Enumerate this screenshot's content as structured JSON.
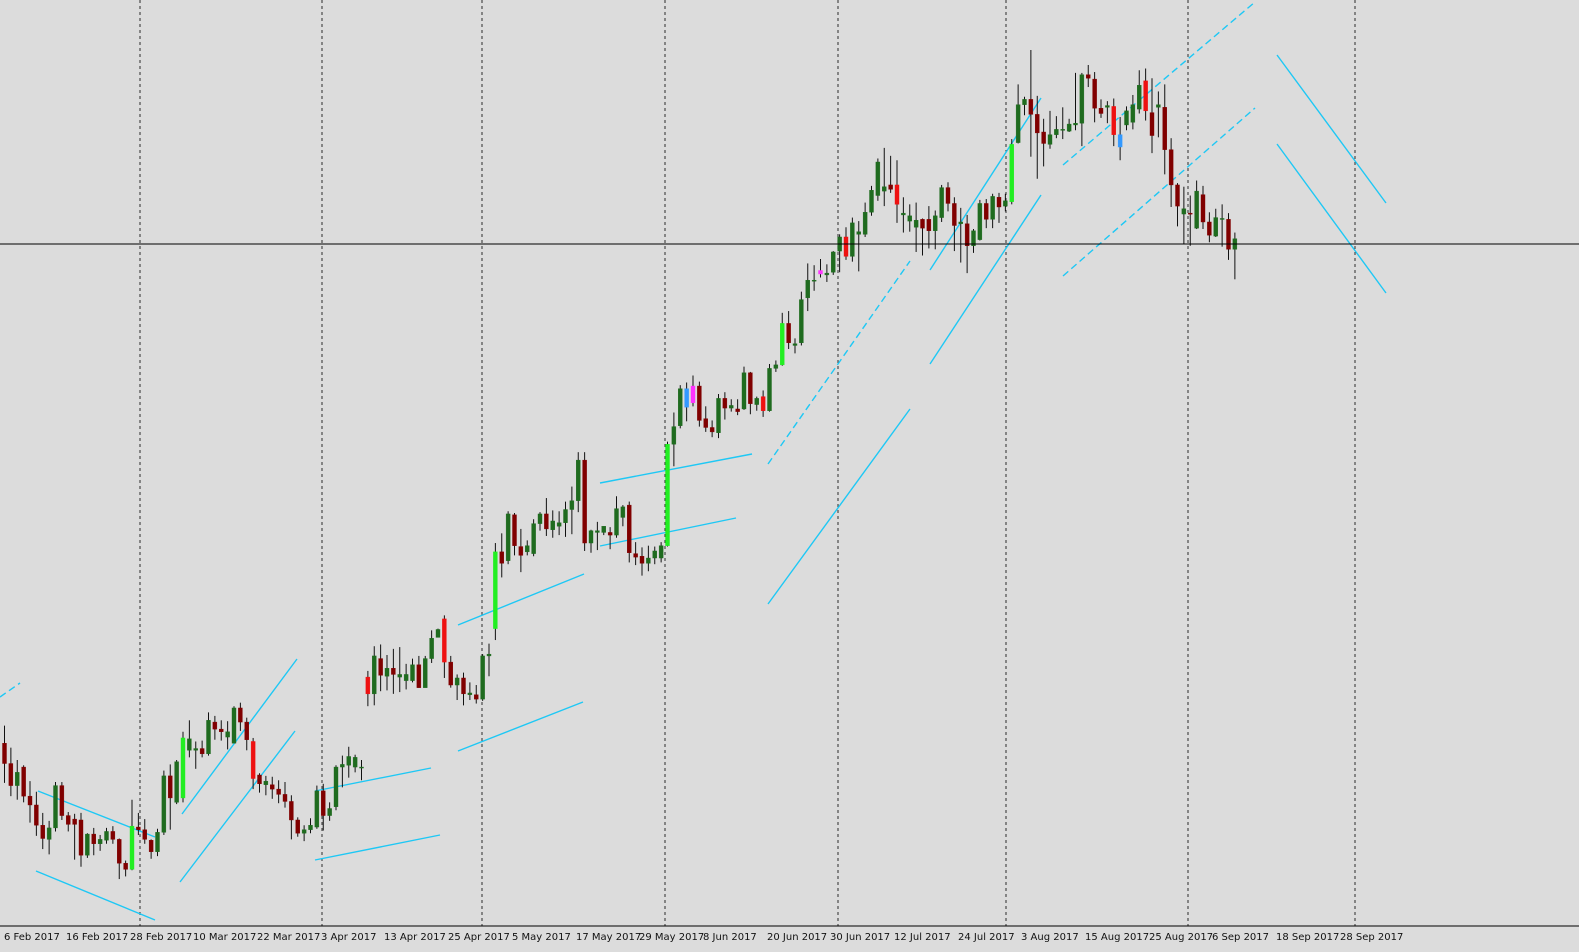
{
  "chart_data": {
    "type": "candlestick",
    "title": "",
    "xlabel": "",
    "ylabel": "",
    "date_labels": [
      "6 Feb 2017",
      "16 Feb 2017",
      "28 Feb 2017",
      "10 Mar 2017",
      "22 Mar 2017",
      "3 Apr 2017",
      "13 Apr 2017",
      "25 Apr 2017",
      "5 May 2017",
      "17 May 2017",
      "29 May 2017",
      "8 Jun 2017",
      "20 Jun 2017",
      "30 Jun 2017",
      "12 Jul 2017",
      "24 Jul 2017",
      "3 Aug 2017",
      "15 Aug 2017",
      "25 Aug 2017",
      "6 Sep 2017",
      "18 Sep 2017",
      "28 Sep 2017"
    ],
    "y_range": [
      0,
      100
    ],
    "grid": "vertical-dashed",
    "current_price_line": 74.6,
    "colors": {
      "background": "#dcdcdc",
      "bull": "#1f6b1f",
      "bear": "#800000",
      "bull_highlight": "#22ee22",
      "bear_highlight": "#ee1111",
      "blue_highlight": "#3399ff",
      "magenta_highlight": "#ff33ff",
      "channel": "#1ec8f5",
      "grid": "#000000",
      "price_line": "#000000"
    },
    "candles": [
      [
        18.0,
        20.0,
        13.5,
        15.7,
        "bear"
      ],
      [
        15.7,
        17.5,
        12.0,
        13.2,
        "bear"
      ],
      [
        13.2,
        16.1,
        11.6,
        14.7,
        "bull"
      ],
      [
        15.3,
        15.5,
        11.3,
        12.0,
        "bear"
      ],
      [
        12.0,
        13.7,
        9.0,
        11.0,
        "bear"
      ],
      [
        11.0,
        12.5,
        7.5,
        8.7,
        "bear"
      ],
      [
        8.7,
        10.1,
        6.0,
        7.2,
        "bear"
      ],
      [
        7.1,
        9.2,
        5.4,
        8.4,
        "bull"
      ],
      [
        8.4,
        13.6,
        8.0,
        13.2,
        "bull"
      ],
      [
        13.2,
        13.6,
        9.3,
        9.8,
        "bear"
      ],
      [
        9.8,
        10.2,
        8.0,
        8.8,
        "bear"
      ],
      [
        8.8,
        10.0,
        4.8,
        9.4,
        "bear"
      ],
      [
        9.3,
        10.1,
        4.0,
        5.3,
        "bear"
      ],
      [
        5.3,
        7.8,
        5.0,
        7.7,
        "bull"
      ],
      [
        7.7,
        8.4,
        5.3,
        6.6,
        "bear"
      ],
      [
        6.6,
        7.6,
        5.8,
        7.1,
        "bull"
      ],
      [
        7.0,
        8.4,
        6.6,
        8.0,
        "bull"
      ],
      [
        8.0,
        8.6,
        6.6,
        7.1,
        "bear"
      ],
      [
        7.1,
        7.2,
        2.6,
        4.4,
        "bear"
      ],
      [
        4.4,
        4.7,
        2.9,
        3.7,
        "bear"
      ],
      [
        3.7,
        11.6,
        3.6,
        8.6,
        "bull_highlight"
      ],
      [
        8.5,
        10.1,
        7.6,
        8.2,
        "bear"
      ],
      [
        8.2,
        9.4,
        6.6,
        7.1,
        "bear"
      ],
      [
        7.0,
        7.1,
        4.9,
        5.7,
        "bear"
      ],
      [
        5.7,
        8.3,
        5.2,
        7.9,
        "bull"
      ],
      [
        7.9,
        14.9,
        7.6,
        14.3,
        "bull"
      ],
      [
        14.3,
        15.6,
        8.2,
        11.8,
        "bear"
      ],
      [
        11.3,
        16.1,
        11.1,
        15.9,
        "bull"
      ],
      [
        11.8,
        19.3,
        11.3,
        18.6,
        "bull_highlight"
      ],
      [
        18.5,
        20.6,
        16.4,
        17.2,
        "bull"
      ],
      [
        17.2,
        18.2,
        15.1,
        17.4,
        "bull"
      ],
      [
        17.4,
        18.3,
        16.4,
        16.8,
        "bear"
      ],
      [
        16.8,
        21.5,
        16.6,
        20.6,
        "bull"
      ],
      [
        20.4,
        21.1,
        18.4,
        19.6,
        "bear"
      ],
      [
        19.6,
        20.6,
        18.3,
        19.3,
        "bear"
      ],
      [
        19.3,
        20.5,
        17.3,
        18.7,
        "bull"
      ],
      [
        18.0,
        22.2,
        18.3,
        22.0,
        "bull"
      ],
      [
        22.0,
        22.6,
        19.4,
        20.4,
        "bear"
      ],
      [
        20.4,
        20.9,
        17.2,
        18.4,
        "bear"
      ],
      [
        18.2,
        18.6,
        12.8,
        14.0,
        "bear_highlight"
      ],
      [
        14.4,
        14.6,
        12.4,
        13.4,
        "bear"
      ],
      [
        13.7,
        14.3,
        12.1,
        13.3,
        "bull"
      ],
      [
        13.3,
        14.2,
        11.7,
        12.8,
        "bear"
      ],
      [
        12.8,
        13.8,
        11.2,
        12.2,
        "bear"
      ],
      [
        12.2,
        13.6,
        10.7,
        11.4,
        "bear"
      ],
      [
        11.4,
        12.1,
        7.1,
        9.3,
        "bear"
      ],
      [
        9.3,
        9.6,
        7.4,
        7.8,
        "bear"
      ],
      [
        7.8,
        8.7,
        6.9,
        8.2,
        "bull"
      ],
      [
        8.2,
        9.5,
        7.8,
        8.7,
        "bull"
      ],
      [
        8.5,
        13.2,
        8.3,
        12.6,
        "bull"
      ],
      [
        12.6,
        13.4,
        8.1,
        9.8,
        "bear"
      ],
      [
        9.8,
        11.3,
        9.2,
        10.6,
        "bull"
      ],
      [
        10.8,
        15.5,
        10.4,
        15.3,
        "bull"
      ],
      [
        15.3,
        16.6,
        13.0,
        15.6,
        "bull"
      ],
      [
        15.5,
        17.6,
        14.1,
        16.5,
        "bull"
      ],
      [
        16.4,
        16.7,
        14.7,
        15.3,
        "bull"
      ],
      [
        15.3,
        16.1,
        13.8,
        15.2,
        "bull"
      ],
      [
        25.5,
        26.2,
        22.2,
        23.6,
        "bear_highlight"
      ],
      [
        23.6,
        29.0,
        22.3,
        27.9,
        "bull"
      ],
      [
        27.6,
        29.2,
        23.9,
        25.7,
        "bear"
      ],
      [
        25.6,
        28.0,
        24.0,
        26.5,
        "bull"
      ],
      [
        26.5,
        28.7,
        23.6,
        25.8,
        "bear"
      ],
      [
        25.5,
        28.9,
        23.8,
        25.8,
        "bull"
      ],
      [
        25.8,
        27.0,
        24.1,
        25.1,
        "bull"
      ],
      [
        25.1,
        27.6,
        24.9,
        26.9,
        "bull"
      ],
      [
        26.9,
        27.9,
        24.3,
        24.3,
        "bear"
      ],
      [
        24.3,
        27.9,
        24.6,
        27.6,
        "bull"
      ],
      [
        27.6,
        30.8,
        27.1,
        29.9,
        "bull"
      ],
      [
        30.0,
        31.0,
        30.0,
        30.9,
        "bull"
      ],
      [
        32.1,
        32.5,
        25.4,
        27.2,
        "bear_highlight"
      ],
      [
        27.2,
        27.9,
        24.3,
        24.6,
        "bear"
      ],
      [
        24.6,
        25.8,
        22.9,
        25.4,
        "bull"
      ],
      [
        25.4,
        26.0,
        22.3,
        23.6,
        "bear"
      ],
      [
        23.7,
        24.9,
        22.9,
        23.5,
        "bull"
      ],
      [
        23.5,
        24.6,
        22.5,
        23.0,
        "bear"
      ],
      [
        23.0,
        28.1,
        22.8,
        27.9,
        "bull"
      ],
      [
        27.9,
        29.3,
        25.6,
        28.1,
        "bull"
      ],
      [
        31.0,
        40.7,
        29.7,
        39.7,
        "bull_highlight"
      ],
      [
        39.7,
        41.8,
        36.8,
        38.4,
        "bear"
      ],
      [
        38.7,
        44.3,
        38.3,
        44.0,
        "bull"
      ],
      [
        43.9,
        44.1,
        39.3,
        40.4,
        "bear"
      ],
      [
        40.3,
        42.3,
        37.4,
        39.3,
        "bear"
      ],
      [
        40.4,
        41.0,
        39.3,
        39.7,
        "bull"
      ],
      [
        39.5,
        43.4,
        39.2,
        42.9,
        "bull"
      ],
      [
        42.9,
        44.2,
        42.1,
        44.0,
        "bull"
      ],
      [
        44.0,
        45.8,
        41.5,
        42.3,
        "bear"
      ],
      [
        42.2,
        44.4,
        41.3,
        43.2,
        "bull"
      ],
      [
        42.6,
        44.3,
        41.6,
        43.0,
        "bull"
      ],
      [
        43.0,
        45.4,
        41.4,
        44.5,
        "bull"
      ],
      [
        44.5,
        47.1,
        41.7,
        45.5,
        "bull"
      ],
      [
        45.5,
        51.0,
        44.2,
        50.1,
        "bull"
      ],
      [
        50.1,
        51.0,
        39.8,
        40.7,
        "bear"
      ],
      [
        40.7,
        42.2,
        39.6,
        42.1,
        "bull"
      ],
      [
        42.1,
        43.1,
        39.9,
        41.9,
        "bull"
      ],
      [
        41.9,
        42.6,
        41.6,
        42.6,
        "bull"
      ],
      [
        41.9,
        42.5,
        40.0,
        41.6,
        "bear"
      ],
      [
        41.6,
        46.0,
        41.3,
        44.6,
        "bull"
      ],
      [
        43.6,
        45.0,
        42.6,
        44.8,
        "bull"
      ],
      [
        45.0,
        45.4,
        38.5,
        39.6,
        "bear"
      ],
      [
        39.5,
        40.8,
        38.2,
        39.1,
        "bear"
      ],
      [
        39.2,
        40.2,
        37.0,
        38.4,
        "bear"
      ],
      [
        38.4,
        40.4,
        37.5,
        39.0,
        "bull"
      ],
      [
        39.0,
        40.3,
        38.3,
        39.8,
        "bull"
      ],
      [
        39.0,
        40.8,
        38.5,
        40.4,
        "bull"
      ],
      [
        40.4,
        52.2,
        40.3,
        51.9,
        "bull_highlight"
      ],
      [
        51.9,
        55.5,
        49.4,
        53.9,
        "bull"
      ],
      [
        54.0,
        58.6,
        53.7,
        58.2,
        "bull"
      ],
      [
        58.2,
        58.9,
        54.5,
        56.1,
        "blue_highlight"
      ],
      [
        56.6,
        59.7,
        56.2,
        58.5,
        "magenta_highlight"
      ],
      [
        58.5,
        59.0,
        53.9,
        54.6,
        "bear"
      ],
      [
        54.8,
        56.2,
        53.3,
        53.8,
        "bear"
      ],
      [
        53.8,
        54.6,
        52.7,
        53.3,
        "bear"
      ],
      [
        53.2,
        57.6,
        52.6,
        57.1,
        "bull"
      ],
      [
        57.1,
        57.8,
        54.7,
        56.0,
        "bear"
      ],
      [
        56.0,
        57.0,
        55.6,
        56.3,
        "bull"
      ],
      [
        55.6,
        57.0,
        55.2,
        55.9,
        "bear"
      ],
      [
        55.9,
        60.7,
        55.8,
        60.0,
        "bull"
      ],
      [
        60.0,
        60.1,
        55.3,
        56.5,
        "bear"
      ],
      [
        56.4,
        57.3,
        55.7,
        57.1,
        "bull"
      ],
      [
        57.3,
        58.0,
        55.0,
        55.7,
        "bear_highlight"
      ],
      [
        55.7,
        61.0,
        55.6,
        60.5,
        "bull"
      ],
      [
        60.5,
        61.4,
        60.1,
        60.9,
        "bull"
      ],
      [
        60.9,
        66.8,
        60.8,
        65.6,
        "bull_highlight"
      ],
      [
        65.6,
        67.0,
        62.7,
        63.4,
        "bear"
      ],
      [
        63.3,
        63.9,
        62.2,
        63.1,
        "bull"
      ],
      [
        63.4,
        69.2,
        63.1,
        68.3,
        "bull"
      ],
      [
        68.5,
        72.4,
        67.0,
        70.5,
        "bull"
      ],
      [
        70.4,
        72.2,
        69.3,
        70.5,
        "bull"
      ],
      [
        71.6,
        72.9,
        70.8,
        71.2,
        "magenta_highlight"
      ],
      [
        71.1,
        72.3,
        70.3,
        71.3,
        "bull"
      ],
      [
        71.4,
        73.8,
        71.1,
        73.7,
        "bull"
      ],
      [
        73.8,
        75.7,
        71.4,
        75.4,
        "bull"
      ],
      [
        75.4,
        76.5,
        72.8,
        73.2,
        "bear_highlight"
      ],
      [
        73.2,
        77.6,
        72.6,
        77.0,
        "bull"
      ],
      [
        76.0,
        77.2,
        71.5,
        75.7,
        "bull"
      ],
      [
        75.7,
        79.3,
        75.4,
        78.2,
        "bull"
      ],
      [
        78.2,
        81.2,
        77.8,
        80.7,
        "bull"
      ],
      [
        80.1,
        84.3,
        79.5,
        83.9,
        "bull"
      ],
      [
        81.1,
        85.5,
        78.9,
        80.6,
        "bull"
      ],
      [
        80.8,
        84.6,
        80.4,
        81.3,
        "bear"
      ],
      [
        81.3,
        84.1,
        77.0,
        79.1,
        "bear_highlight"
      ],
      [
        78.1,
        79.9,
        75.9,
        77.9,
        "bull"
      ],
      [
        77.8,
        79.1,
        76.0,
        77.2,
        "bull"
      ],
      [
        77.3,
        79.3,
        73.7,
        76.5,
        "bull"
      ],
      [
        76.4,
        77.5,
        73.3,
        77.4,
        "bear"
      ],
      [
        77.4,
        78.9,
        74.1,
        76.1,
        "bear"
      ],
      [
        76.1,
        78.4,
        74.0,
        77.8,
        "bull"
      ],
      [
        77.6,
        81.3,
        77.1,
        81.0,
        "bull"
      ],
      [
        81.0,
        81.6,
        78.3,
        79.2,
        "bear"
      ],
      [
        79.2,
        79.9,
        73.8,
        76.7,
        "bear"
      ],
      [
        76.9,
        78.7,
        72.5,
        77.1,
        "bull"
      ],
      [
        76.9,
        77.9,
        71.3,
        74.4,
        "bear"
      ],
      [
        74.4,
        76.3,
        73.6,
        76.1,
        "bull"
      ],
      [
        75.1,
        79.6,
        75.0,
        79.2,
        "bull"
      ],
      [
        79.2,
        79.7,
        76.4,
        77.4,
        "bear"
      ],
      [
        77.4,
        80.3,
        76.4,
        80.0,
        "bull"
      ],
      [
        79.9,
        80.4,
        77.0,
        78.8,
        "bear"
      ],
      [
        78.9,
        80.3,
        78.3,
        79.5,
        "bull"
      ],
      [
        79.4,
        86.5,
        79.1,
        85.9,
        "bull_highlight"
      ],
      [
        86.1,
        92.7,
        86.0,
        90.4,
        "bull"
      ],
      [
        90.4,
        91.3,
        89.2,
        91.0,
        "bull"
      ],
      [
        91.0,
        96.6,
        84.5,
        89.3,
        "bear"
      ],
      [
        89.3,
        91.4,
        82.0,
        87.2,
        "bear"
      ],
      [
        87.3,
        88.8,
        83.4,
        86.0,
        "bear"
      ],
      [
        85.9,
        89.7,
        85.4,
        87.0,
        "bull"
      ],
      [
        87.0,
        89.1,
        86.6,
        87.6,
        "bull"
      ],
      [
        87.6,
        90.1,
        86.5,
        87.5,
        "bull"
      ],
      [
        87.4,
        88.8,
        87.3,
        88.2,
        "bull"
      ],
      [
        88.1,
        94.0,
        87.5,
        88.3,
        "bull"
      ],
      [
        88.3,
        94.0,
        85.7,
        93.8,
        "bull"
      ],
      [
        93.8,
        94.9,
        92.4,
        93.4,
        "bear"
      ],
      [
        93.3,
        94.1,
        88.4,
        90.0,
        "bear"
      ],
      [
        90.0,
        91.0,
        88.9,
        89.4,
        "bear"
      ],
      [
        90.3,
        90.8,
        88.3,
        90.1,
        "bull"
      ],
      [
        90.2,
        91.1,
        85.7,
        87.0,
        "bear_highlight"
      ],
      [
        87.0,
        89.0,
        84.1,
        85.6,
        "blue_highlight"
      ],
      [
        88.1,
        90.2,
        87.5,
        89.7,
        "bull"
      ],
      [
        88.4,
        91.5,
        87.6,
        90.4,
        "bull"
      ],
      [
        89.9,
        94.3,
        89.4,
        92.6,
        "bull"
      ],
      [
        93.1,
        94.5,
        88.6,
        89.7,
        "bear_highlight"
      ],
      [
        89.5,
        93.4,
        84.9,
        86.9,
        "bear"
      ],
      [
        90.4,
        91.9,
        86.7,
        90.1,
        "bull"
      ],
      [
        90.1,
        92.7,
        82.5,
        85.3,
        "bear"
      ],
      [
        85.3,
        86.6,
        78.8,
        81.3,
        "bear"
      ],
      [
        81.3,
        81.5,
        76.6,
        78.9,
        "bear"
      ],
      [
        78.6,
        81.1,
        74.6,
        78.0,
        "bull"
      ],
      [
        78.0,
        80.1,
        74.4,
        78.1,
        "bear"
      ],
      [
        76.4,
        81.8,
        76.3,
        80.6,
        "bull"
      ],
      [
        80.2,
        81.2,
        76.3,
        77.1,
        "bear"
      ],
      [
        77.1,
        78.2,
        74.8,
        75.6,
        "bear"
      ],
      [
        75.5,
        78.6,
        75.4,
        77.6,
        "bull"
      ],
      [
        77.5,
        79.1,
        74.3,
        77.4,
        "bull"
      ],
      [
        77.4,
        78.1,
        72.8,
        74.0,
        "bear"
      ],
      [
        74.0,
        75.9,
        70.6,
        75.2,
        "bull"
      ]
    ]
  },
  "axis": {
    "date_labels": [
      "6 Feb 2017",
      "16 Feb 2017",
      "28 Feb 2017",
      "10 Mar 2017",
      "22 Mar 2017",
      "3 Apr 2017",
      "13 Apr 2017",
      "25 Apr 2017",
      "5 May 2017",
      "17 May 2017",
      "29 May 2017",
      "8 Jun 2017",
      "20 Jun 2017",
      "30 Jun 2017",
      "12 Jul 2017",
      "24 Jul 2017",
      "3 Aug 2017",
      "15 Aug 2017",
      "25 Aug 2017",
      "6 Sep 2017",
      "18 Sep 2017",
      "28 Sep 2017"
    ]
  }
}
